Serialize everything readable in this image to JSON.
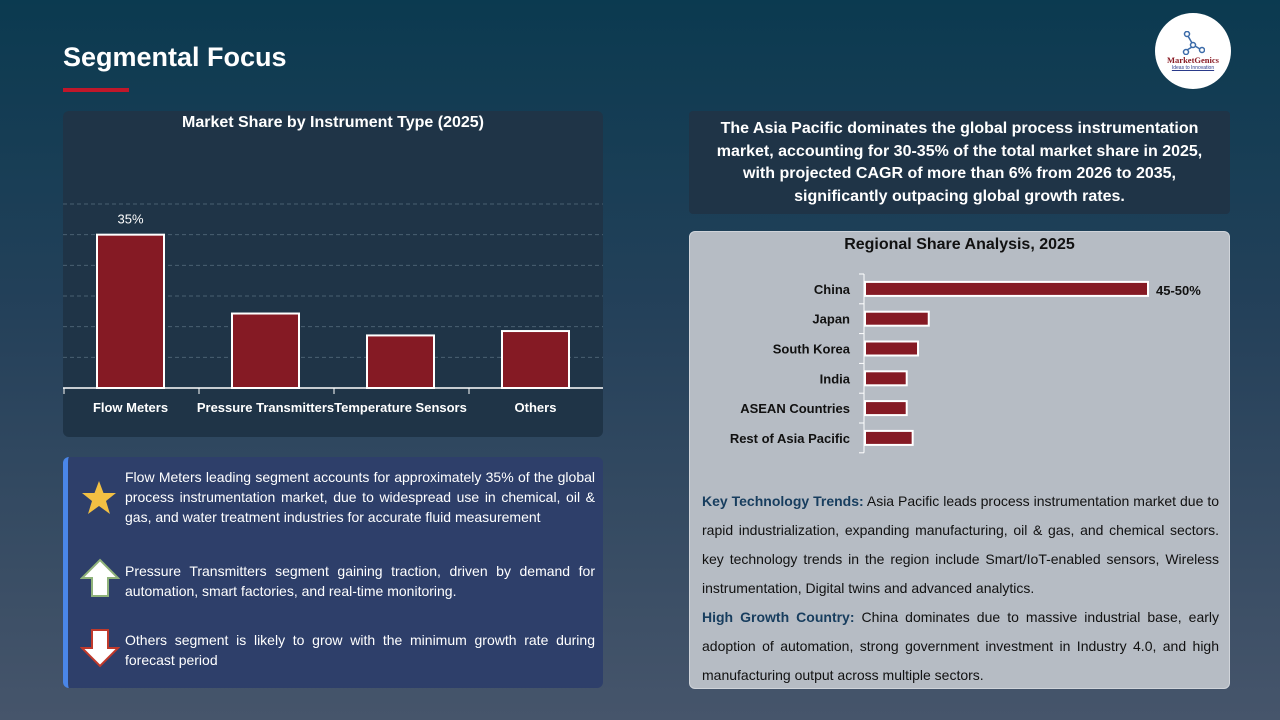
{
  "header": {
    "title": "Segmental Focus",
    "logo_text": "MarketGenics",
    "logo_tagline": "Ideas to Innovation"
  },
  "chart_data": [
    {
      "type": "bar",
      "title": "Market Share by Instrument Type (2025)",
      "categories": [
        "Flow Meters",
        "Pressure Transmitters",
        "Temperature Sensors",
        "Others"
      ],
      "values": [
        35,
        17,
        12,
        13
      ],
      "data_labels": [
        "35%",
        "",
        "",
        ""
      ],
      "ylim": [
        0,
        42
      ],
      "grid": true,
      "bar_color": "#851a24"
    },
    {
      "type": "bar",
      "orientation": "horizontal",
      "title": "Regional Share Analysis, 2025",
      "categories": [
        "China",
        "Japan",
        "South Korea",
        "India",
        "ASEAN Countries",
        "Rest of Asia Pacific"
      ],
      "values": [
        47.5,
        10.7,
        8.9,
        7,
        7,
        8
      ],
      "data_labels": [
        "45-50%",
        "",
        "",
        "",
        "",
        ""
      ],
      "grid": false,
      "bar_color": "#851a24"
    }
  ],
  "insights": [
    {
      "icon": "star-icon",
      "text": "Flow Meters leading segment accounts for approximately 35% of the global process instrumentation market, due to widespread use in chemical, oil & gas, and water treatment industries for accurate fluid measurement"
    },
    {
      "icon": "arrow-up-icon",
      "text": "Pressure Transmitters segment gaining traction, driven by demand for automation, smart factories, and real-time monitoring."
    },
    {
      "icon": "arrow-down-icon",
      "text": "Others segment is likely to grow with the minimum growth rate during forecast period"
    }
  ],
  "highlight": "The Asia Pacific dominates the global process instrumentation market, accounting for 30-35% of the total market share in 2025, with projected CAGR of more than 6% from 2026 to 2035, significantly outpacing global growth rates.",
  "trends": {
    "tech_label": "Key Technology Trends:",
    "tech_text": " Asia Pacific leads process instrumentation market due to rapid industrialization, expanding manufacturing, oil & gas, and chemical sectors. key technology trends in the region include Smart/IoT-enabled sensors, Wireless instrumentation, Digital twins and advanced analytics.",
    "growth_label": "High Growth Country:",
    "growth_text": " China dominates due to massive industrial base, early adoption of automation, strong government investment in Industry 4.0, and high manufacturing output across multiple sectors."
  },
  "colors": {
    "accent": "#c0172a",
    "bar": "#851a24",
    "insight_border": "#4a86e8"
  }
}
